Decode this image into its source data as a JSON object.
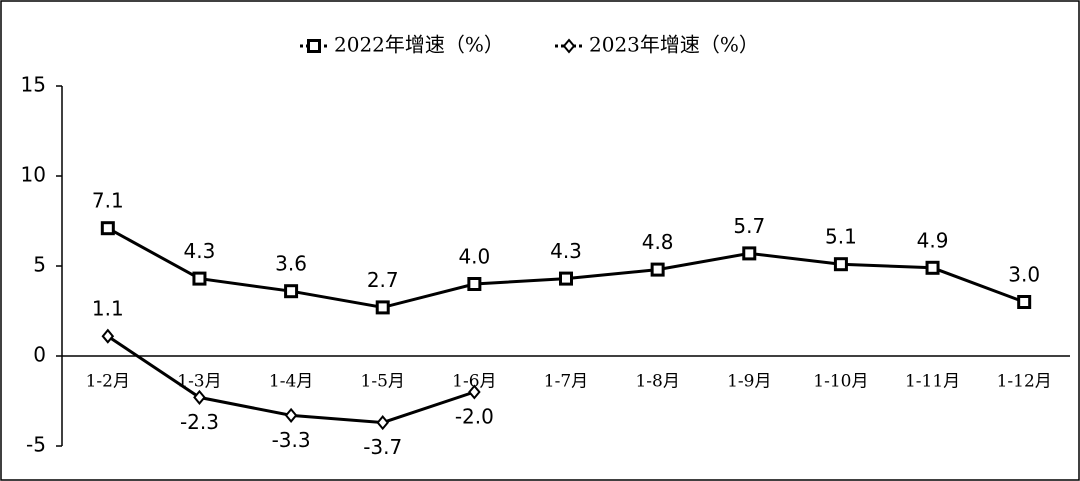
{
  "chart_data": {
    "type": "line",
    "categories": [
      "1-2月",
      "1-3月",
      "1-4月",
      "1-5月",
      "1-6月",
      "1-7月",
      "1-8月",
      "1-9月",
      "1-10月",
      "1-11月",
      "1-12月"
    ],
    "series": [
      {
        "name": "2022年增速（%）",
        "color": "#000000",
        "marker": "square",
        "values": [
          7.1,
          4.3,
          3.6,
          2.7,
          4.0,
          4.3,
          4.8,
          5.7,
          5.1,
          4.9,
          3.0
        ],
        "value_labels": [
          "7.1",
          "4.3",
          "3.6",
          "2.7",
          "4.0",
          "4.3",
          "4.8",
          "5.7",
          "5.1",
          "4.9",
          "3.0"
        ]
      },
      {
        "name": "2023年增速（%）",
        "color": "#000000",
        "marker": "diamond",
        "values": [
          1.1,
          -2.3,
          -3.3,
          -3.7,
          -2.0,
          null,
          null,
          null,
          null,
          null,
          null
        ],
        "value_labels": [
          "1.1",
          "-2.3",
          "-3.3",
          "-3.7",
          "-2.0",
          null,
          null,
          null,
          null,
          null,
          null
        ]
      }
    ],
    "ylim": [
      -5,
      15
    ],
    "yticks": [
      -5,
      0,
      5,
      10,
      15
    ],
    "grid": false,
    "legend": "top"
  }
}
